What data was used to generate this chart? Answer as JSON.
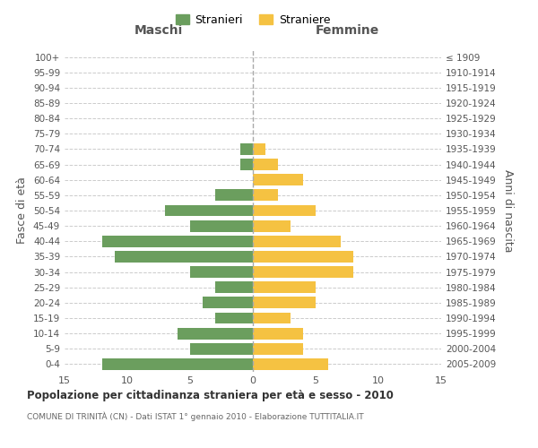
{
  "age_groups": [
    "0-4",
    "5-9",
    "10-14",
    "15-19",
    "20-24",
    "25-29",
    "30-34",
    "35-39",
    "40-44",
    "45-49",
    "50-54",
    "55-59",
    "60-64",
    "65-69",
    "70-74",
    "75-79",
    "80-84",
    "85-89",
    "90-94",
    "95-99",
    "100+"
  ],
  "birth_years": [
    "2005-2009",
    "2000-2004",
    "1995-1999",
    "1990-1994",
    "1985-1989",
    "1980-1984",
    "1975-1979",
    "1970-1974",
    "1965-1969",
    "1960-1964",
    "1955-1959",
    "1950-1954",
    "1945-1949",
    "1940-1944",
    "1935-1939",
    "1930-1934",
    "1925-1929",
    "1920-1924",
    "1915-1919",
    "1910-1914",
    "≤ 1909"
  ],
  "maschi": [
    12,
    5,
    6,
    3,
    4,
    3,
    5,
    11,
    12,
    5,
    7,
    3,
    0,
    1,
    1,
    0,
    0,
    0,
    0,
    0,
    0
  ],
  "femmine": [
    6,
    4,
    4,
    3,
    5,
    5,
    8,
    8,
    7,
    3,
    5,
    2,
    4,
    2,
    1,
    0,
    0,
    0,
    0,
    0,
    0
  ],
  "maschi_color": "#6b9e5e",
  "femmine_color": "#f5c242",
  "title": "Popolazione per cittadinanza straniera per età e sesso - 2010",
  "subtitle": "COMUNE DI TRINITÀ (CN) - Dati ISTAT 1° gennaio 2010 - Elaborazione TUTTITALIA.IT",
  "xlabel_left": "Maschi",
  "xlabel_right": "Femmine",
  "ylabel_left": "Fasce di età",
  "ylabel_right": "Anni di nascita",
  "legend_stranieri": "Stranieri",
  "legend_straniere": "Straniere",
  "xlim": 15,
  "background_color": "#ffffff",
  "grid_color": "#cccccc"
}
